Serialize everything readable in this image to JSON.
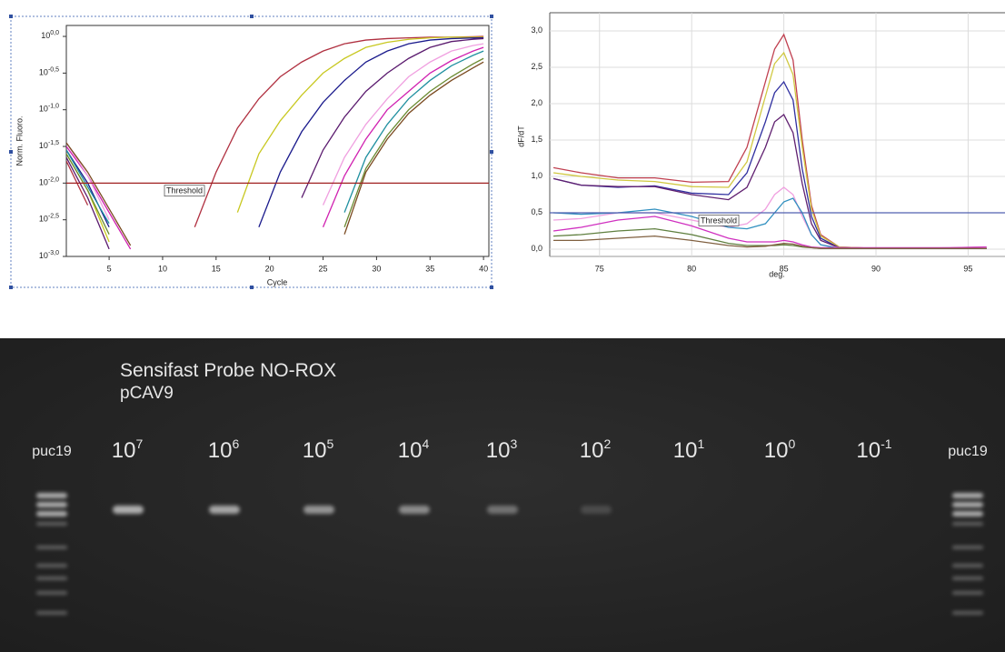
{
  "chart_data": [
    {
      "type": "line",
      "xlabel": "Cycle",
      "ylabel": "Norm. Fluoro.",
      "yscale": "log",
      "grid": false,
      "xlim": [
        1,
        40.5
      ],
      "xticks": [
        5,
        10,
        15,
        20,
        25,
        30,
        35,
        40
      ],
      "ylim": [
        0.001,
        1.41
      ],
      "yticks": [
        {
          "value": 1,
          "label": "10",
          "exp": "0,0"
        },
        {
          "value": 0.316,
          "label": "10",
          "exp": "-0,5"
        },
        {
          "value": 0.1,
          "label": "10",
          "exp": "-1,0"
        },
        {
          "value": 0.0316,
          "label": "10",
          "exp": "-1,5"
        },
        {
          "value": 0.01,
          "label": "10",
          "exp": "-2,0"
        },
        {
          "value": 0.00316,
          "label": "10",
          "exp": "-2,5"
        },
        {
          "value": 0.001,
          "label": "10",
          "exp": "-3,0"
        }
      ],
      "threshold": {
        "value": 0.01,
        "label": "Threshold",
        "color": "#a02020"
      },
      "x": [
        1,
        3,
        5,
        7,
        9,
        11,
        13,
        15,
        17,
        19,
        21,
        23,
        25,
        27,
        29,
        31,
        33,
        35,
        37,
        39,
        40
      ],
      "series": [
        {
          "color": "#b03040",
          "values": [
            0.02,
            0.005,
            null,
            null,
            null,
            null,
            0.00251,
            0.0141,
            0.0562,
            0.141,
            0.282,
            0.447,
            0.631,
            0.794,
            0.891,
            0.933,
            0.955,
            0.977,
            0.977,
            0.988,
            1
          ]
        },
        {
          "color": "#c8c820",
          "values": [
            0.0251,
            0.00794,
            0.00158,
            null,
            null,
            null,
            null,
            null,
            0.00398,
            0.0251,
            0.0708,
            0.158,
            0.316,
            0.501,
            0.708,
            0.832,
            0.912,
            0.955,
            0.977,
            0.977,
            0.977
          ]
        },
        {
          "color": "#1a1a8c",
          "values": [
            0.0282,
            0.01,
            0.00251,
            null,
            null,
            null,
            null,
            null,
            null,
            0.00251,
            0.0141,
            0.0501,
            0.126,
            0.251,
            0.447,
            0.631,
            0.794,
            0.891,
            0.933,
            0.95,
            0.955
          ]
        },
        {
          "color": "#5a1a6e",
          "values": [
            0.0224,
            0.00631,
            0.00126,
            null,
            null,
            null,
            null,
            null,
            null,
            null,
            null,
            0.00631,
            0.0282,
            0.0794,
            0.178,
            0.316,
            0.501,
            0.708,
            0.851,
            0.912,
            0.933
          ]
        },
        {
          "color": "#d020b0",
          "values": [
            0.0316,
            0.0126,
            0.00398,
            0.00126,
            null,
            null,
            null,
            null,
            null,
            null,
            null,
            null,
            0.00251,
            0.0126,
            0.0398,
            0.1,
            0.178,
            0.316,
            0.468,
            0.63,
            0.708
          ]
        },
        {
          "color": "#f0a0e0",
          "values": [
            0.0355,
            0.0126,
            0.00316,
            null,
            null,
            null,
            null,
            null,
            null,
            null,
            null,
            null,
            0.00501,
            0.0224,
            0.0631,
            0.141,
            0.282,
            0.447,
            0.631,
            0.75,
            0.794
          ]
        },
        {
          "color": "#2090a0",
          "values": [
            0.0282,
            0.00891,
            0.00282,
            null,
            null,
            null,
            null,
            null,
            null,
            null,
            null,
            null,
            null,
            0.00398,
            0.0224,
            0.0631,
            0.141,
            0.251,
            0.398,
            0.55,
            0.631
          ]
        },
        {
          "color": "#6a8a30",
          "values": [
            0.0251,
            0.00794,
            0.002,
            null,
            null,
            null,
            null,
            null,
            null,
            null,
            null,
            null,
            null,
            0.00251,
            0.0158,
            0.0447,
            0.1,
            0.178,
            0.282,
            0.42,
            0.501
          ]
        },
        {
          "color": "#7a4a20",
          "values": [
            0.0355,
            0.0141,
            0.00447,
            0.00141,
            null,
            null,
            null,
            null,
            null,
            null,
            null,
            null,
            null,
            0.002,
            0.0141,
            0.0398,
            0.0891,
            0.158,
            0.251,
            0.37,
            0.447
          ]
        }
      ]
    },
    {
      "type": "line",
      "xlabel": "deg.",
      "ylabel": "dF/dT",
      "yscale": "linear",
      "grid": true,
      "xlim": [
        72.3,
        97
      ],
      "xticks": [
        75,
        80,
        85,
        90,
        95
      ],
      "ylim": [
        -0.1,
        3.25
      ],
      "yticks": [
        {
          "value": 0,
          "label": "0,0"
        },
        {
          "value": 0.5,
          "label": "0,5"
        },
        {
          "value": 1,
          "label": "1,0"
        },
        {
          "value": 1.5,
          "label": "1,5"
        },
        {
          "value": 2,
          "label": "2,0"
        },
        {
          "value": 2.5,
          "label": "2,5"
        },
        {
          "value": 3,
          "label": "3,0"
        }
      ],
      "threshold": {
        "value": 0.5,
        "label": "Threshold",
        "color": "#5060b0"
      },
      "x": [
        72.5,
        74,
        76,
        78,
        80,
        82,
        83,
        84,
        84.5,
        85,
        85.5,
        86,
        86.5,
        87,
        88,
        90,
        92,
        94,
        96
      ],
      "series": [
        {
          "color": "#c04050",
          "values": [
            1.12,
            1.05,
            0.98,
            0.98,
            0.92,
            0.93,
            1.4,
            2.3,
            2.75,
            2.95,
            2.6,
            1.5,
            0.6,
            0.2,
            0.03,
            0.01,
            0.01,
            0.01,
            0.01
          ]
        },
        {
          "color": "#d0c840",
          "values": [
            1.05,
            1.0,
            0.95,
            0.93,
            0.86,
            0.85,
            1.2,
            2.1,
            2.55,
            2.7,
            2.4,
            1.4,
            0.55,
            0.18,
            0.03,
            0.01,
            0.01,
            0.01,
            0.01
          ]
        },
        {
          "color": "#3030a0",
          "values": [
            0.97,
            0.88,
            0.85,
            0.87,
            0.77,
            0.75,
            1.05,
            1.75,
            2.15,
            2.3,
            2.05,
            1.1,
            0.45,
            0.15,
            0.02,
            0.01,
            0.01,
            0.01,
            0.01
          ]
        },
        {
          "color": "#602070",
          "values": [
            0.97,
            0.88,
            0.86,
            0.86,
            0.75,
            0.68,
            0.85,
            1.4,
            1.75,
            1.85,
            1.6,
            0.9,
            0.35,
            0.12,
            0.02,
            0.01,
            0.01,
            0.01,
            0.01
          ]
        },
        {
          "color": "#f0a0e0",
          "values": [
            0.4,
            0.42,
            0.5,
            0.5,
            0.4,
            0.3,
            0.35,
            0.55,
            0.75,
            0.85,
            0.75,
            0.45,
            0.2,
            0.06,
            0.02,
            0.01,
            0.01,
            0.02,
            0.03
          ]
        },
        {
          "color": "#3090c0",
          "values": [
            0.5,
            0.48,
            0.5,
            0.55,
            0.45,
            0.3,
            0.28,
            0.35,
            0.5,
            0.65,
            0.7,
            0.5,
            0.2,
            0.06,
            0.01,
            0.01,
            0.01,
            0.01,
            0.01
          ]
        },
        {
          "color": "#d030c0",
          "values": [
            0.25,
            0.3,
            0.4,
            0.45,
            0.32,
            0.15,
            0.1,
            0.1,
            0.1,
            0.12,
            0.1,
            0.06,
            0.03,
            0.02,
            0.02,
            0.02,
            0.02,
            0.02,
            0.03
          ]
        },
        {
          "color": "#608040",
          "values": [
            0.18,
            0.2,
            0.25,
            0.28,
            0.2,
            0.08,
            0.05,
            0.05,
            0.05,
            0.06,
            0.05,
            0.03,
            0.02,
            0.01,
            0.01,
            0.01,
            0.01,
            0.01,
            0.01
          ]
        },
        {
          "color": "#806040",
          "values": [
            0.12,
            0.12,
            0.15,
            0.18,
            0.12,
            0.05,
            0.03,
            0.04,
            0.06,
            0.08,
            0.07,
            0.04,
            0.02,
            0.01,
            0.01,
            0.01,
            0.01,
            0.01,
            0.01
          ]
        }
      ]
    }
  ],
  "gel": {
    "title": "Sensifast Probe NO-ROX",
    "subtitle": "pCAV9",
    "lanes": [
      {
        "label": "puc19"
      },
      {
        "label": "10",
        "exp": "7"
      },
      {
        "label": "10",
        "exp": "6"
      },
      {
        "label": "10",
        "exp": "5"
      },
      {
        "label": "10",
        "exp": "4"
      },
      {
        "label": "10",
        "exp": "3"
      },
      {
        "label": "10",
        "exp": "2"
      },
      {
        "label": "10",
        "exp": "1"
      },
      {
        "label": "10",
        "exp": "0"
      },
      {
        "label": "10",
        "exp": "-1"
      },
      {
        "label": "puc19"
      }
    ]
  }
}
